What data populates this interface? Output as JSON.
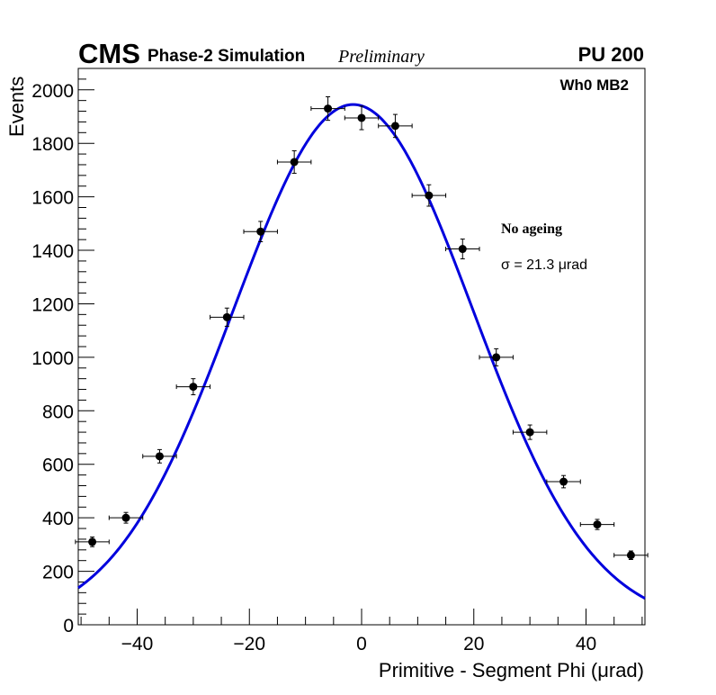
{
  "header": {
    "experiment": "CMS",
    "subtitle": "Phase-2 Simulation",
    "status": "Preliminary",
    "pileup": "PU 200"
  },
  "chart_data": {
    "type": "scatter",
    "title": "",
    "region_label": "Wh0 MB2",
    "condition_label": "No ageing",
    "fit_label": "σ = 21.3  μrad",
    "xlabel": "Primitive - Segment Phi (μrad)",
    "ylabel": "Events",
    "xlim": [
      -50.5,
      50.5
    ],
    "ylim": [
      0,
      2080
    ],
    "x_ticks": [
      -40,
      -20,
      0,
      20,
      40
    ],
    "x_tick_labels": [
      "−40",
      "−20",
      "0",
      "20",
      "40"
    ],
    "y_ticks": [
      0,
      200,
      400,
      600,
      800,
      1000,
      1200,
      1400,
      1600,
      1800,
      2000
    ],
    "y_tick_labels": [
      "0",
      "200",
      "400",
      "600",
      "800",
      "1000",
      "1200",
      "1400",
      "1600",
      "1800",
      "2000"
    ],
    "bin_half_width": 3,
    "series": [
      {
        "name": "data",
        "color": "#000000",
        "x": [
          -48,
          -42,
          -36,
          -30,
          -24,
          -18,
          -12,
          -6,
          0,
          6,
          12,
          18,
          24,
          30,
          36,
          42,
          48
        ],
        "y": [
          310,
          400,
          630,
          890,
          1150,
          1470,
          1730,
          1930,
          1895,
          1865,
          1605,
          1405,
          1000,
          720,
          535,
          375,
          260
        ],
        "yerr": [
          18,
          20,
          25,
          30,
          34,
          38,
          42,
          44,
          44,
          43,
          40,
          37,
          32,
          27,
          23,
          19,
          16
        ]
      },
      {
        "name": "gaussian fit",
        "type": "line",
        "color": "#0000dd",
        "amplitude": 1945,
        "mean": -1.5,
        "sigma": 21.3
      }
    ]
  }
}
